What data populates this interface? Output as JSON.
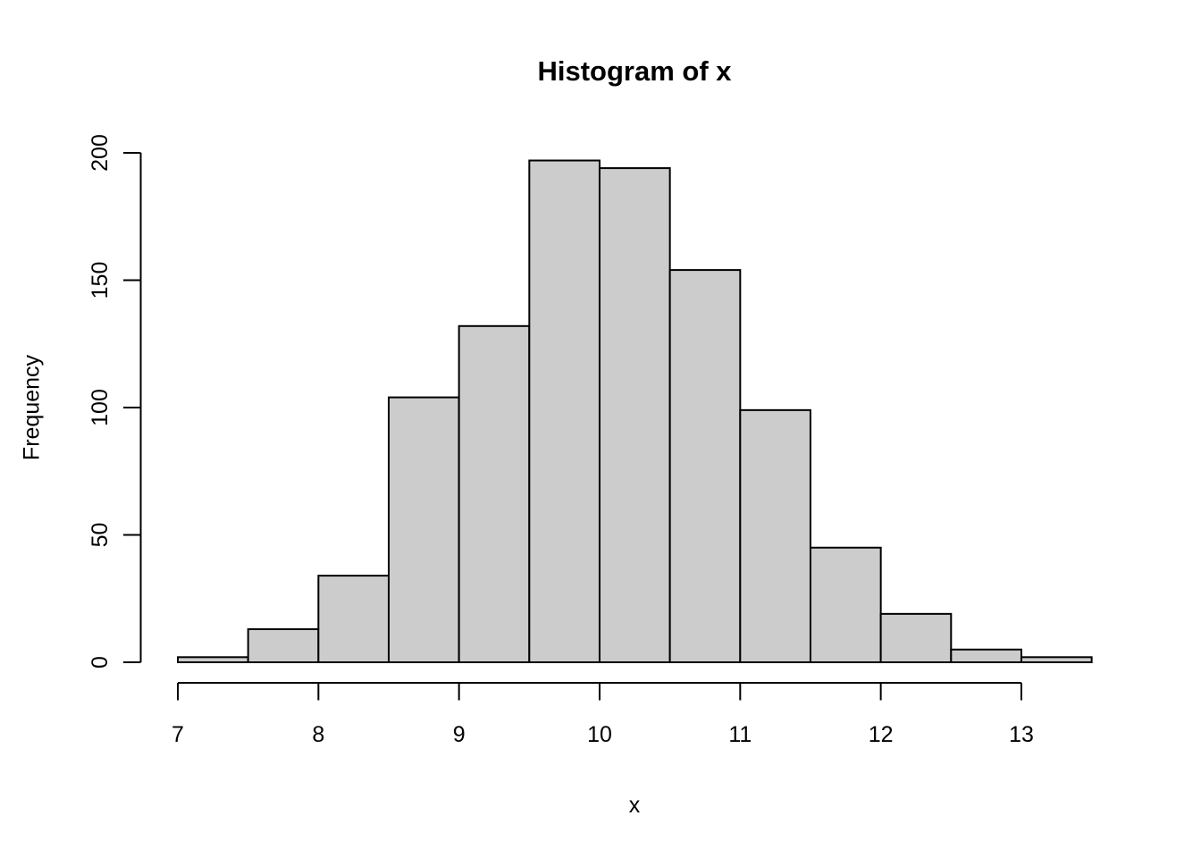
{
  "chart": {
    "title": "Histogram of x",
    "xlabel": "x",
    "ylabel": "Frequency",
    "colors": {
      "bar_fill": "#cccccc",
      "bar_border": "#000000",
      "axis": "#000000",
      "background": "#ffffff",
      "text": "#000000"
    }
  },
  "chart_data": {
    "type": "bar",
    "subtype": "histogram",
    "title": "Histogram of x",
    "xlabel": "x",
    "ylabel": "Frequency",
    "breaks": [
      7,
      7.5,
      8,
      8.5,
      9,
      9.5,
      10,
      10.5,
      11,
      11.5,
      12,
      12.5,
      13,
      13.5
    ],
    "counts": [
      2,
      13,
      34,
      104,
      132,
      197,
      194,
      154,
      99,
      45,
      19,
      5,
      2
    ],
    "total_n": 1000,
    "x_ticks": [
      7,
      8,
      9,
      10,
      11,
      12,
      13
    ],
    "y_ticks": [
      0,
      50,
      100,
      150,
      200
    ],
    "xlim": [
      7,
      13.5
    ],
    "ylim": [
      0,
      200
    ],
    "grid": false,
    "legend": null
  }
}
